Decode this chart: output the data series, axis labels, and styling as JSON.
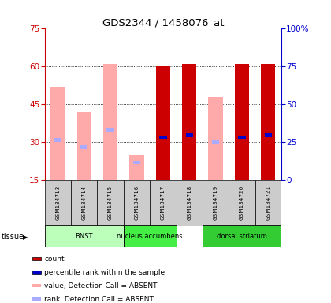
{
  "title": "GDS2344 / 1458076_at",
  "samples": [
    "GSM134713",
    "GSM134714",
    "GSM134715",
    "GSM134716",
    "GSM134717",
    "GSM134718",
    "GSM134719",
    "GSM134720",
    "GSM134721"
  ],
  "tissue_groups": [
    {
      "label": "BNST",
      "start": 0,
      "end": 2,
      "color": "#bbffbb"
    },
    {
      "label": "nucleus accumbens",
      "start": 3,
      "end": 4,
      "color": "#44ee44"
    },
    {
      "label": "dorsal striatum",
      "start": 6,
      "end": 8,
      "color": "#33cc33"
    }
  ],
  "ylim_left": [
    15,
    75
  ],
  "ylim_right": [
    0,
    100
  ],
  "yticks_left": [
    15,
    30,
    45,
    60,
    75
  ],
  "yticks_right": [
    0,
    25,
    50,
    75,
    100
  ],
  "ytick_labels_right": [
    "0",
    "25",
    "50",
    "75",
    "100%"
  ],
  "absent_bars": [
    {
      "x": 0,
      "value": 52,
      "rank": 31
    },
    {
      "x": 1,
      "value": 42,
      "rank": 28
    },
    {
      "x": 2,
      "value": 61,
      "rank": 35
    },
    {
      "x": 3,
      "value": 25,
      "rank": 22
    },
    {
      "x": 6,
      "value": 48,
      "rank": 30
    }
  ],
  "present_bars": [
    {
      "x": 4,
      "value": 60,
      "rank": 32
    },
    {
      "x": 5,
      "value": 61,
      "rank": 33
    },
    {
      "x": 7,
      "value": 61,
      "rank": 32
    },
    {
      "x": 8,
      "value": 61,
      "rank": 33
    }
  ],
  "bar_width": 0.55,
  "rank_bar_width": 0.28,
  "rank_bar_height": 1.5,
  "color_present_bar": "#cc0000",
  "color_present_rank": "#0000cc",
  "color_absent_bar": "#ffaaaa",
  "color_absent_rank": "#aaaaff",
  "left_yaxis_color": "#cc0000",
  "right_yaxis_color": "#0000cc",
  "legend_items": [
    {
      "color": "#cc0000",
      "label": "count",
      "edge": true
    },
    {
      "color": "#0000cc",
      "label": "percentile rank within the sample",
      "edge": true
    },
    {
      "color": "#ffaaaa",
      "label": "value, Detection Call = ABSENT",
      "edge": false
    },
    {
      "color": "#aaaaff",
      "label": "rank, Detection Call = ABSENT",
      "edge": false
    }
  ],
  "background_color": "#ffffff",
  "sample_box_color": "#cccccc",
  "grid_yticks": [
    30,
    45,
    60
  ]
}
